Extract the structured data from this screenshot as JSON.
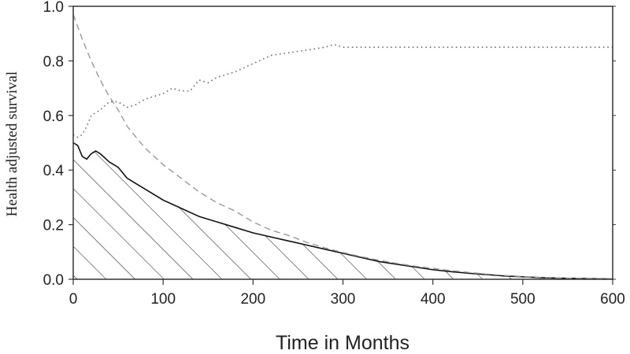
{
  "chart_data": {
    "type": "line",
    "title": "",
    "xlabel": "Time in Months",
    "ylabel": "Health adjusted survival",
    "xlim": [
      0,
      600
    ],
    "ylim": [
      0,
      1.0
    ],
    "x_ticks": [
      "0",
      "100",
      "200",
      "300",
      "400",
      "500",
      "600"
    ],
    "y_ticks": [
      "0.0",
      "0.2",
      "0.4",
      "0.6",
      "0.8",
      "1.0"
    ],
    "grid": false,
    "legend": "none",
    "series": [
      {
        "style": "solid-black-with-hatched-area",
        "x": [
          0,
          5,
          10,
          15,
          20,
          25,
          30,
          40,
          50,
          60,
          70,
          80,
          100,
          120,
          140,
          160,
          180,
          200,
          220,
          240,
          260,
          280,
          300,
          320,
          340,
          360,
          380,
          400,
          420,
          440,
          460,
          480,
          500,
          520,
          540,
          560,
          580,
          600
        ],
        "values": [
          0.5,
          0.49,
          0.45,
          0.44,
          0.46,
          0.47,
          0.46,
          0.43,
          0.41,
          0.37,
          0.35,
          0.33,
          0.29,
          0.26,
          0.23,
          0.21,
          0.19,
          0.17,
          0.155,
          0.14,
          0.125,
          0.11,
          0.095,
          0.08,
          0.065,
          0.055,
          0.045,
          0.035,
          0.028,
          0.022,
          0.017,
          0.012,
          0.009,
          0.006,
          0.004,
          0.003,
          0.002,
          0.001
        ]
      },
      {
        "style": "dashed-gray",
        "x": [
          0,
          10,
          20,
          30,
          40,
          50,
          60,
          80,
          100,
          120,
          140,
          160,
          180,
          200,
          220,
          240,
          260,
          280,
          300,
          320,
          340,
          360,
          380,
          400,
          420,
          440,
          460,
          480,
          500,
          520,
          540,
          560,
          580,
          600
        ],
        "values": [
          0.97,
          0.88,
          0.8,
          0.73,
          0.67,
          0.62,
          0.56,
          0.48,
          0.42,
          0.37,
          0.32,
          0.28,
          0.25,
          0.21,
          0.18,
          0.16,
          0.135,
          0.115,
          0.098,
          0.083,
          0.07,
          0.058,
          0.048,
          0.04,
          0.032,
          0.025,
          0.019,
          0.014,
          0.01,
          0.007,
          0.005,
          0.003,
          0.002,
          0.001
        ]
      },
      {
        "style": "dotted-gray",
        "x": [
          0,
          5,
          10,
          15,
          20,
          25,
          30,
          40,
          50,
          60,
          70,
          80,
          100,
          110,
          120,
          130,
          140,
          150,
          160,
          180,
          200,
          220,
          240,
          260,
          280,
          290,
          300,
          320,
          340,
          360,
          400,
          500,
          600
        ],
        "values": [
          0.53,
          0.52,
          0.53,
          0.56,
          0.6,
          0.61,
          0.62,
          0.65,
          0.65,
          0.63,
          0.64,
          0.66,
          0.68,
          0.7,
          0.69,
          0.69,
          0.73,
          0.72,
          0.74,
          0.76,
          0.79,
          0.82,
          0.83,
          0.84,
          0.85,
          0.86,
          0.85,
          0.85,
          0.85,
          0.85,
          0.85,
          0.85,
          0.85
        ]
      }
    ]
  }
}
